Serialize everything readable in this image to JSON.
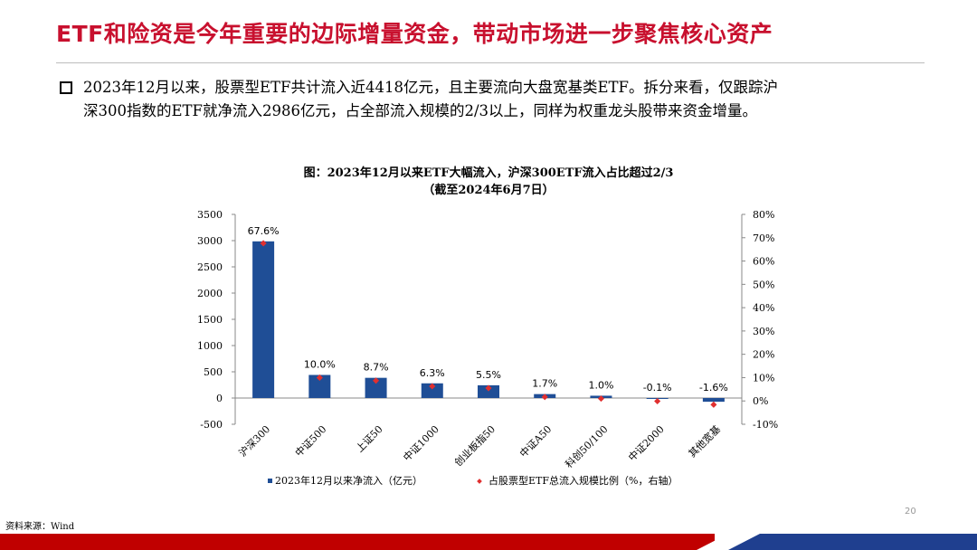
{
  "page": {
    "title": "ETF和险资是今年重要的边际增量资金，带动市场进一步聚焦核心资产",
    "bullet_line1": "2023年12月以来，股票型ETF共计流入近4418亿元，且主要流向大盘宽基类ETF。拆分来看，仅跟踪沪",
    "bullet_line2": "深300指数的ETF就净流入2986亿元，占全部流入规模的2/3以上，同样为权重龙头股带来资金增量。",
    "source": "资料来源：Wind",
    "page_number": "20",
    "colors": {
      "title": "#c8102e",
      "bar": "#1f4e96",
      "marker": "#e03030",
      "footer_red": "#c00000",
      "footer_blue": "#1f3f8f"
    }
  },
  "chart_data": {
    "type": "bar",
    "title_line1": "图：2023年12月以来ETF大幅流入，沪深300ETF流入占比超过2/3",
    "title_line2": "（截至2024年6月7日）",
    "categories": [
      "沪深300",
      "中证500",
      "上证50",
      "中证1000",
      "创业板指50",
      "中证A50",
      "科创50/100",
      "中证2000",
      "其他宽基"
    ],
    "series": [
      {
        "name": "2023年12月以来净流入（亿元）",
        "axis": "left",
        "kind": "bar",
        "values": [
          2986,
          440,
          385,
          280,
          243,
          75,
          44,
          -4,
          -71
        ]
      },
      {
        "name": "占股票型ETF总流入规模比例（%，右轴）",
        "axis": "right",
        "kind": "marker",
        "values": [
          67.6,
          10.0,
          8.7,
          6.3,
          5.5,
          1.7,
          1.0,
          -0.1,
          -1.6
        ],
        "labels": [
          "67.6%",
          "10.0%",
          "8.7%",
          "6.3%",
          "5.5%",
          "1.7%",
          "1.0%",
          "-0.1%",
          "-1.6%"
        ]
      }
    ],
    "ylim_left": [
      -500,
      3500
    ],
    "yticks_left": [
      "-500",
      "0",
      "500",
      "1000",
      "1500",
      "2000",
      "2500",
      "3000",
      "3500"
    ],
    "ylim_right": [
      -10,
      80
    ],
    "yticks_right": [
      "-10%",
      "0%",
      "10%",
      "20%",
      "30%",
      "40%",
      "50%",
      "60%",
      "70%",
      "80%"
    ],
    "grid": false,
    "legend_position": "bottom"
  }
}
